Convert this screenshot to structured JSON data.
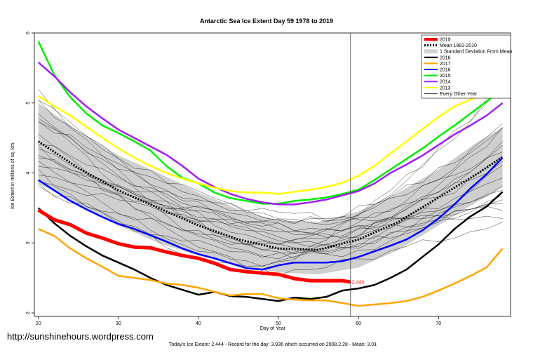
{
  "chart_data": {
    "type": "line",
    "title": "Antarctic Sea Ice Extent Day 59 1978 to 2019",
    "xlabel": "Day of Year",
    "ylabel": "Ice Extent in millions of sq. km.",
    "xlim": [
      19.5,
      79
    ],
    "ylim": [
      1.95,
      6.0
    ],
    "x_ticks": [
      20,
      30,
      40,
      50,
      60,
      70
    ],
    "y_ticks": [
      2,
      3,
      4,
      5,
      6
    ],
    "current_day": 59,
    "annotation": "2.444",
    "legend_position": "top-right",
    "grid": false,
    "legend": [
      {
        "label": "2019",
        "color": "#ff0000",
        "style": "thick"
      },
      {
        "label": "Mean 1981-2010",
        "color": "#000000",
        "style": "dotted"
      },
      {
        "label": "1 Standard Deviation From Mean",
        "color": "#d3d3d3",
        "style": "band"
      },
      {
        "label": "2018",
        "color": "#000000",
        "style": "solid"
      },
      {
        "label": "2017",
        "color": "#ffa500",
        "style": "solid"
      },
      {
        "label": "2016",
        "color": "#0000ff",
        "style": "solid"
      },
      {
        "label": "2015",
        "color": "#00ee00",
        "style": "solid"
      },
      {
        "label": "2014",
        "color": "#a020f0",
        "style": "solid"
      },
      {
        "label": "2013",
        "color": "#ffff00",
        "style": "solid"
      },
      {
        "label": "Every Other Year",
        "color": "#000000",
        "style": "thin"
      }
    ],
    "band": {
      "x": [
        20,
        25,
        30,
        35,
        40,
        45,
        50,
        55,
        60,
        65,
        70,
        75,
        78
      ],
      "upper": [
        5.0,
        4.6,
        4.25,
        4.0,
        3.72,
        3.48,
        3.32,
        3.3,
        3.45,
        3.72,
        4.05,
        4.45,
        4.65
      ],
      "lower": [
        3.85,
        3.55,
        3.25,
        3.0,
        2.82,
        2.68,
        2.58,
        2.55,
        2.65,
        2.9,
        3.25,
        3.6,
        3.8
      ]
    },
    "mean": {
      "x": [
        20,
        25,
        30,
        35,
        40,
        45,
        50,
        55,
        60,
        65,
        70,
        75,
        78
      ],
      "y": [
        4.45,
        4.07,
        3.75,
        3.5,
        3.25,
        3.05,
        2.92,
        2.9,
        3.05,
        3.3,
        3.65,
        4.0,
        4.23
      ]
    },
    "series": [
      {
        "name": "2019",
        "color": "#ff0000",
        "x": [
          20,
          22,
          24,
          26,
          28,
          30,
          32,
          34,
          36,
          38,
          40,
          42,
          44,
          46,
          48,
          50,
          52,
          54,
          56,
          58,
          59
        ],
        "y": [
          3.47,
          3.33,
          3.26,
          3.14,
          3.07,
          2.99,
          2.94,
          2.93,
          2.87,
          2.82,
          2.78,
          2.71,
          2.62,
          2.59,
          2.57,
          2.55,
          2.49,
          2.46,
          2.46,
          2.46,
          2.44
        ]
      },
      {
        "name": "2018",
        "color": "#000000",
        "x": [
          20,
          22,
          24,
          26,
          28,
          30,
          32,
          34,
          36,
          38,
          40,
          42,
          44,
          46,
          48,
          50,
          52,
          54,
          56,
          58,
          60,
          62,
          64,
          66,
          68,
          70,
          72,
          74,
          76,
          78
        ],
        "y": [
          3.5,
          3.28,
          3.1,
          2.95,
          2.82,
          2.72,
          2.62,
          2.5,
          2.4,
          2.33,
          2.26,
          2.3,
          2.24,
          2.23,
          2.2,
          2.17,
          2.22,
          2.2,
          2.23,
          2.32,
          2.35,
          2.4,
          2.5,
          2.62,
          2.8,
          2.98,
          3.2,
          3.38,
          3.52,
          3.73
        ]
      },
      {
        "name": "2017",
        "color": "#ffa500",
        "x": [
          20,
          22,
          24,
          26,
          28,
          30,
          32,
          34,
          36,
          38,
          40,
          42,
          44,
          46,
          48,
          50,
          52,
          54,
          56,
          58,
          60,
          62,
          64,
          66,
          68,
          70,
          72,
          74,
          76,
          78
        ],
        "y": [
          3.2,
          3.1,
          2.92,
          2.78,
          2.66,
          2.53,
          2.5,
          2.47,
          2.42,
          2.4,
          2.36,
          2.3,
          2.25,
          2.27,
          2.27,
          2.21,
          2.19,
          2.18,
          2.18,
          2.14,
          2.1,
          2.12,
          2.14,
          2.17,
          2.23,
          2.32,
          2.42,
          2.53,
          2.65,
          2.92
        ]
      },
      {
        "name": "2016",
        "color": "#0000ff",
        "x": [
          20,
          22,
          24,
          26,
          28,
          30,
          32,
          34,
          36,
          38,
          40,
          42,
          44,
          46,
          48,
          50,
          52,
          54,
          56,
          58,
          60,
          62,
          64,
          66,
          68,
          70,
          72,
          74,
          76,
          78
        ],
        "y": [
          3.9,
          3.75,
          3.6,
          3.48,
          3.37,
          3.27,
          3.2,
          3.11,
          3.02,
          2.92,
          2.84,
          2.78,
          2.71,
          2.64,
          2.62,
          2.68,
          2.72,
          2.72,
          2.72,
          2.74,
          2.8,
          2.88,
          2.96,
          3.05,
          3.18,
          3.35,
          3.55,
          3.78,
          3.98,
          4.22
        ]
      },
      {
        "name": "2015",
        "color": "#00ee00",
        "x": [
          20,
          22,
          24,
          26,
          28,
          30,
          32,
          34,
          36,
          38,
          40,
          42,
          44,
          46,
          48,
          50,
          52,
          54,
          56,
          58,
          60,
          62,
          64,
          66,
          68,
          70,
          72,
          74,
          76,
          78
        ],
        "y": [
          5.88,
          5.4,
          5.08,
          4.85,
          4.68,
          4.57,
          4.45,
          4.32,
          4.1,
          3.93,
          3.85,
          3.72,
          3.64,
          3.6,
          3.56,
          3.56,
          3.6,
          3.62,
          3.65,
          3.7,
          3.76,
          3.9,
          4.05,
          4.2,
          4.35,
          4.52,
          4.68,
          4.85,
          5.02,
          5.22
        ]
      },
      {
        "name": "2014",
        "color": "#a020f0",
        "x": [
          20,
          22,
          24,
          26,
          28,
          30,
          32,
          34,
          36,
          38,
          40,
          42,
          44,
          46,
          48,
          50,
          52,
          54,
          56,
          58,
          60,
          62,
          64,
          66,
          68,
          70,
          72,
          74,
          76,
          78
        ],
        "y": [
          5.58,
          5.38,
          5.15,
          4.95,
          4.78,
          4.62,
          4.5,
          4.38,
          4.26,
          4.1,
          3.92,
          3.8,
          3.7,
          3.63,
          3.58,
          3.55,
          3.55,
          3.58,
          3.62,
          3.68,
          3.74,
          3.85,
          4.0,
          4.12,
          4.25,
          4.4,
          4.55,
          4.68,
          4.82,
          5.0
        ]
      },
      {
        "name": "2013",
        "color": "#ffff00",
        "x": [
          20,
          22,
          24,
          26,
          28,
          30,
          32,
          34,
          36,
          38,
          40,
          42,
          44,
          46,
          48,
          50,
          52,
          54,
          56,
          58,
          60,
          62,
          64,
          66,
          68,
          70,
          72,
          74,
          76,
          78
        ],
        "y": [
          5.1,
          4.95,
          4.82,
          4.66,
          4.5,
          4.35,
          4.22,
          4.1,
          4.0,
          3.92,
          3.85,
          3.79,
          3.74,
          3.72,
          3.72,
          3.7,
          3.73,
          3.76,
          3.8,
          3.86,
          3.96,
          4.1,
          4.28,
          4.45,
          4.63,
          4.8,
          4.95,
          5.05,
          5.15,
          5.22
        ]
      }
    ],
    "other_years_range": {
      "start": [
        3.8,
        5.15
      ],
      "min_mid": [
        2.55,
        3.4
      ],
      "end": [
        3.25,
        5.4
      ]
    }
  },
  "footer": {
    "url": "http://sunshinehours.wordpress.com",
    "summary": "Today's Ice Extent: 2.444  - Record for the day: 3.936 which occurred on 2008.2.28  - Mean: 3.01"
  }
}
